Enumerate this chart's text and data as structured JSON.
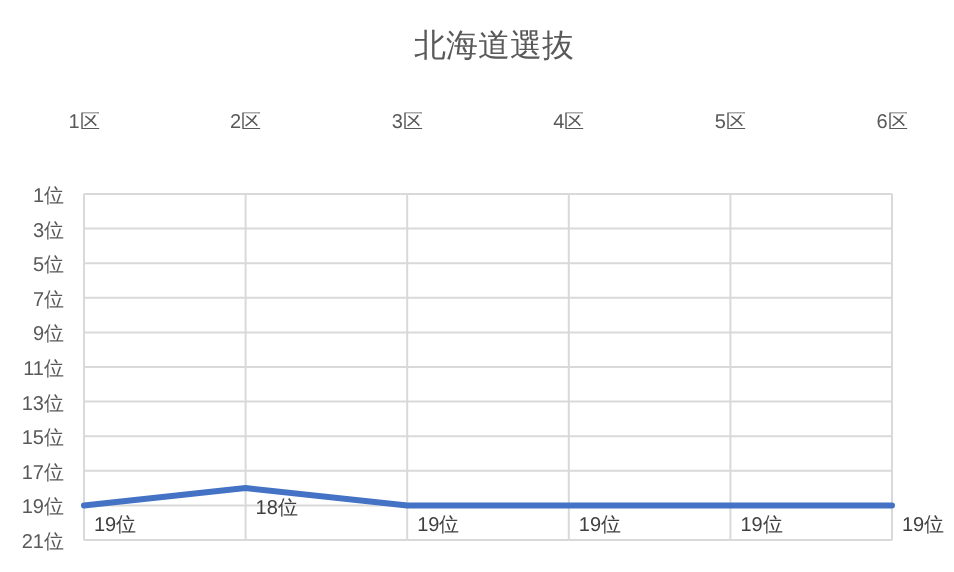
{
  "chart_data": {
    "type": "line",
    "title": "北海道選抜",
    "categories": [
      "1区",
      "2区",
      "3区",
      "4区",
      "5区",
      "6区"
    ],
    "series": [
      {
        "color": "#4472c4",
        "values": [
          19,
          18,
          19,
          19,
          19,
          19
        ],
        "value_labels": [
          "19位",
          "18位",
          "19位",
          "19位",
          "19位",
          "19位"
        ]
      }
    ],
    "ylim": [
      21,
      1
    ],
    "yticks": [
      {
        "value": 1,
        "label": "1位"
      },
      {
        "value": 3,
        "label": "3位"
      },
      {
        "value": 5,
        "label": "5位"
      },
      {
        "value": 7,
        "label": "7位"
      },
      {
        "value": 9,
        "label": "9位"
      },
      {
        "value": 11,
        "label": "11位"
      },
      {
        "value": 13,
        "label": "13位"
      },
      {
        "value": 15,
        "label": "15位"
      },
      {
        "value": 17,
        "label": "17位"
      },
      {
        "value": 19,
        "label": "19位"
      },
      {
        "value": 21,
        "label": "21位"
      }
    ],
    "grid": true,
    "marker": "none",
    "line_style": "solid"
  }
}
